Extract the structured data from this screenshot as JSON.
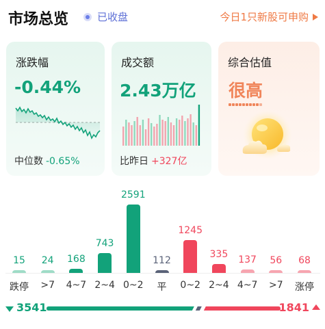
{
  "header": {
    "title": "市场总览",
    "status": "已收盘",
    "ipo_text": "今日1只新股可申购"
  },
  "cards": {
    "change": {
      "label": "涨跌幅",
      "value": "-0.44%",
      "foot_label": "中位数",
      "foot_value": "-0.65%"
    },
    "volume": {
      "label": "成交额",
      "value": "2.43万亿",
      "foot_label": "比昨日",
      "foot_value": "+327亿"
    },
    "valuation": {
      "label": "综合估值",
      "value": "很高"
    }
  },
  "distribution": {
    "categories": [
      "跌停",
      ">7",
      "4~7",
      "2~4",
      "0~2",
      "平",
      "0~2",
      "2~4",
      "4~7",
      ">7",
      "涨停"
    ],
    "values": [
      "15",
      "24",
      "168",
      "743",
      "2591",
      "112",
      "1245",
      "335",
      "137",
      "56",
      "68"
    ],
    "counts": [
      15,
      24,
      168,
      743,
      2591,
      112,
      1245,
      335,
      137,
      56,
      68
    ]
  },
  "ratio": {
    "down": "3541",
    "up": "1841",
    "down_count": 3541,
    "up_count": 1841
  },
  "colors": {
    "green": "#12a27a",
    "red": "#f0465c",
    "gray": "#5a6278",
    "orange": "#f0855a",
    "accent": "#5d6fd6"
  }
}
